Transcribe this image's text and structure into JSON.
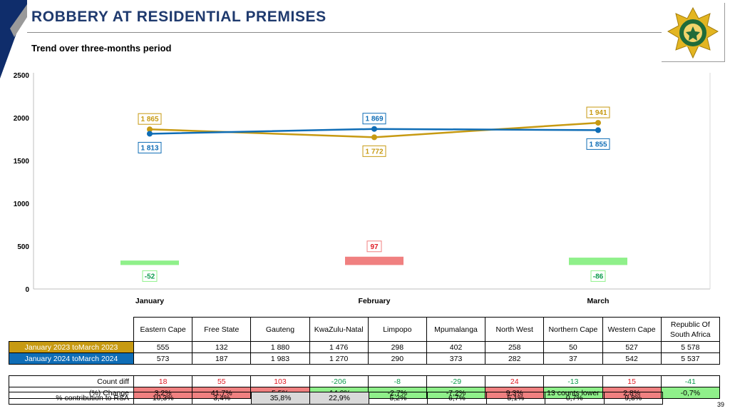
{
  "header": {
    "title": "ROBBERY AT RESIDENTIAL PREMISES",
    "subtitle": "Trend over three-months period",
    "page_number": "39"
  },
  "logo": {
    "icon": "saps-star-badge-icon",
    "text": "SOUTH AFRICAN POLICE SERVICE"
  },
  "colors": {
    "title": "#1f3a6e",
    "series_2023": "#c79a12",
    "series_2024": "#0f6db6",
    "increase": "#f08080",
    "decrease": "#8ff08a",
    "increase_text": "#e01b24",
    "decrease_text": "#0c9a4c",
    "corner_band": "#0f2d6b"
  },
  "chart_data": {
    "type": "line",
    "categories": [
      "January",
      "February",
      "March"
    ],
    "ylim": [
      0,
      2500
    ],
    "yticks": [
      0,
      500,
      1000,
      1500,
      2000,
      2500
    ],
    "ytick_labels": [
      "0",
      "500",
      "1000",
      "1500",
      "2000",
      "2500"
    ],
    "grid": false,
    "legend": "none",
    "series": [
      {
        "values": [
          1865,
          1772,
          1941
        ],
        "labels": [
          "1 865",
          "1 772",
          "1 941"
        ],
        "color": "#c79a12"
      },
      {
        "values": [
          1813,
          1869,
          1855
        ],
        "labels": [
          "1 813",
          "1 869",
          "1 855"
        ],
        "color": "#0f6db6"
      }
    ],
    "difference": {
      "values": [
        -52,
        97,
        -86
      ],
      "labels": [
        "-52",
        "97",
        "-86"
      ]
    }
  },
  "table": {
    "columns": [
      "Eastern Cape",
      "Free State",
      "Gauteng",
      "KwaZulu-Natal",
      "Limpopo",
      "Mpumalanga",
      "North West",
      "Northern Cape",
      "Western Cape",
      "Republic Of South Africa"
    ],
    "rows": [
      {
        "label": "January 2023 toMarch 2023",
        "values": [
          "555",
          "132",
          "1 880",
          "1 476",
          "298",
          "402",
          "258",
          "50",
          "527",
          "5 578"
        ]
      },
      {
        "label": "January 2024 toMarch 2024",
        "values": [
          "573",
          "187",
          "1 983",
          "1 270",
          "290",
          "373",
          "282",
          "37",
          "542",
          "5 537"
        ]
      },
      {
        "label": "Count diff",
        "values": [
          "18",
          "55",
          "103",
          "-206",
          "-8",
          "-29",
          "24",
          "-13",
          "15",
          "-41"
        ]
      },
      {
        "label": "(%) Change",
        "values": [
          "3,2%",
          "41,7%",
          "5,5%",
          "-14,0%",
          "-2,7%",
          "-7,2%",
          "9,3%",
          "13 counts lower",
          "2,8%",
          "-0,7%"
        ]
      }
    ],
    "contribution": {
      "label": "% contribution to RSA",
      "values": [
        "10,3%",
        "3,4%",
        "35,8%",
        "22,9%",
        "5,2%",
        "6,7%",
        "5,1%",
        "0,7%",
        "9,8%"
      ]
    }
  }
}
